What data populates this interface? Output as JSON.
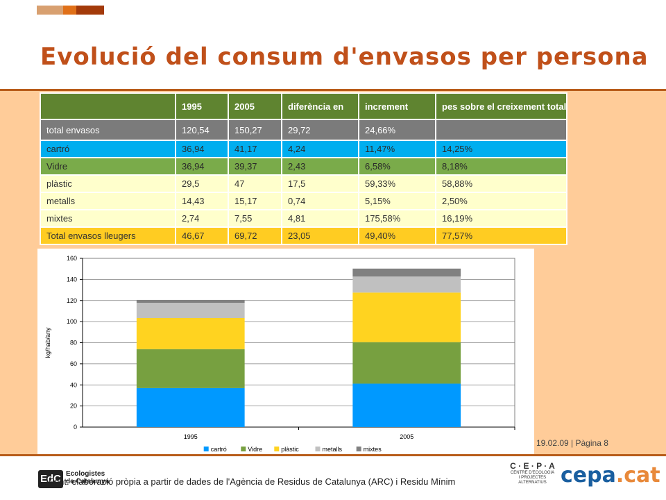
{
  "slide": {
    "title": "Evolució del consum d'envasos per persona",
    "page_footer": "19.02.09 | Pàgina 8",
    "source": "Font: elaboració pròpia a partir de dades de l'Agència de Residus de Catalunya (ARC) i Residu Mínim",
    "logo_edc_mark": "EdC",
    "logo_edc_name_1": "Ecologistes",
    "logo_edc_name_2": "de Catalunya",
    "logo_cepa_letters": "C · E · P · A",
    "logo_cepa_sub_1": "CENTRE D'ECOLOGIA",
    "logo_cepa_sub_2": "I PROJECTES ALTERNATIUS",
    "logo_cepa_domain": "cepa",
    "logo_cepa_tld": ".cat",
    "colors": {
      "accent": "#C0501A",
      "band": "#FFCC99",
      "rule": "#B85C1A"
    }
  },
  "table": {
    "headers": [
      "",
      "1995",
      "2005",
      "diferència en",
      "increment",
      "pes sobre el creixement total"
    ],
    "rows": [
      [
        "total envasos",
        "120,54",
        "150,27",
        "29,72",
        "24,66%",
        ""
      ],
      [
        "cartró",
        "36,94",
        "41,17",
        "4,24",
        "11,47%",
        "14,25%"
      ],
      [
        "Vidre",
        "36,94",
        "39,37",
        "2,43",
        "6,58%",
        "8,18%"
      ],
      [
        "plàstic",
        "29,5",
        "47",
        "17,5",
        "59,33%",
        "58,88%"
      ],
      [
        "metalls",
        "14,43",
        "15,17",
        "0,74",
        "5,15%",
        "2,50%"
      ],
      [
        "mixtes",
        "2,74",
        "7,55",
        "4,81",
        "175,58%",
        "16,19%"
      ],
      [
        "Total envasos lleugers",
        "46,67",
        "69,72",
        "23,05",
        "49,40%",
        "77,57%"
      ]
    ]
  },
  "chart_data": {
    "type": "bar",
    "stacked": true,
    "categories": [
      "1995",
      "2005"
    ],
    "series": [
      {
        "name": "cartró",
        "values": [
          36.94,
          41.17
        ],
        "color": "#0099FF"
      },
      {
        "name": "Vidre",
        "values": [
          36.94,
          39.37
        ],
        "color": "#77A040"
      },
      {
        "name": "plàstic",
        "values": [
          29.5,
          47
        ],
        "color": "#FFD320"
      },
      {
        "name": "metalls",
        "values": [
          14.43,
          15.17
        ],
        "color": "#C0C0C0"
      },
      {
        "name": "mixtes",
        "values": [
          2.74,
          7.55
        ],
        "color": "#808080"
      }
    ],
    "ylabel": "kg/hab/any",
    "ylim": [
      0,
      160
    ],
    "yticks": [
      0,
      20,
      40,
      60,
      80,
      100,
      120,
      140,
      160
    ],
    "grid": true,
    "legend": "bottom"
  }
}
